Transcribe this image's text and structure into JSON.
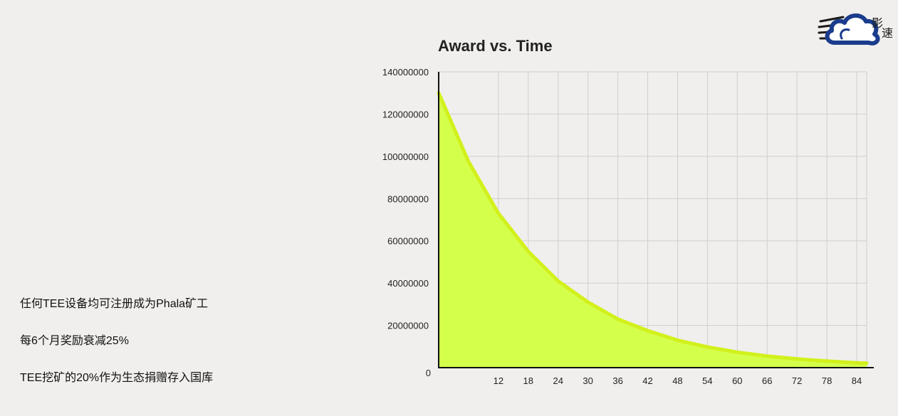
{
  "chart_data": {
    "type": "area",
    "title": "Award vs. Time",
    "xlabel": "",
    "ylabel": "",
    "x_ticks": [
      12,
      18,
      24,
      30,
      36,
      42,
      48,
      54,
      60,
      66,
      72,
      78,
      84
    ],
    "y_ticks": [
      0,
      20000000,
      40000000,
      60000000,
      80000000,
      100000000,
      120000000,
      140000000
    ],
    "xlim": [
      0,
      86
    ],
    "ylim": [
      0,
      140000000
    ],
    "grid": true,
    "series": [
      {
        "x": [
          0,
          6,
          12,
          18,
          24,
          30,
          36,
          42,
          48,
          54,
          60,
          66,
          72,
          78,
          84,
          86
        ],
        "values": [
          130000000,
          97500000,
          73000000,
          55000000,
          41000000,
          31000000,
          23000000,
          17500000,
          13000000,
          9800000,
          7300000,
          5500000,
          4100000,
          3100000,
          2300000,
          2100000
        ]
      }
    ],
    "colors": {
      "fill": "#d4ff4a",
      "line": "#d2f01b",
      "grid": "#cfcfcf",
      "axis": "#111111"
    }
  },
  "notes": [
    "任何TEE设备均可注册成为Phala矿工",
    "每6个月奖励衰减25%",
    "TEE挖矿的20%作为生态捐赠存入国库"
  ],
  "logo": {
    "icon": "cloud-logo-icon",
    "text": "影速"
  }
}
